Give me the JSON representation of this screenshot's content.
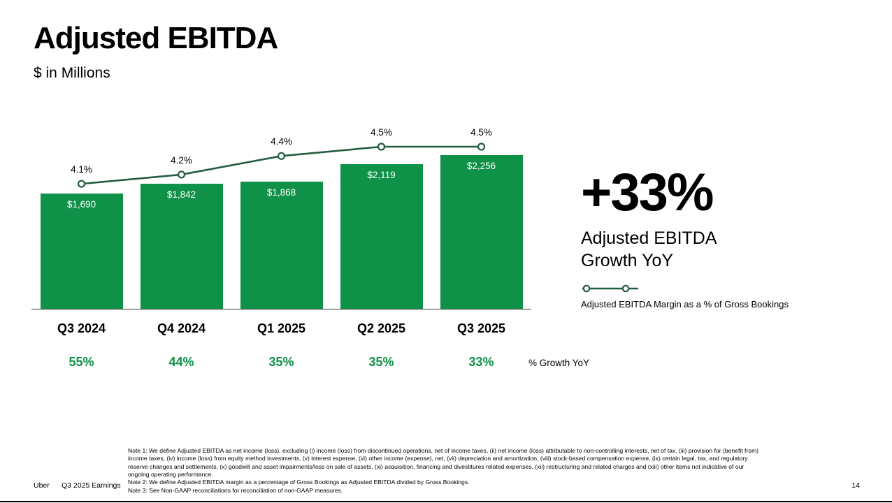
{
  "title": "Adjusted EBITDA",
  "subtitle": "$ in Millions",
  "chart_data": {
    "type": "bar",
    "title": "Adjusted EBITDA",
    "ylabel": "$ in Millions",
    "categories": [
      "Q3 2024",
      "Q4 2024",
      "Q1 2025",
      "Q2 2025",
      "Q3 2025"
    ],
    "series": [
      {
        "name": "Adjusted EBITDA ($M)",
        "type": "bar",
        "values": [
          1690,
          1842,
          1868,
          2119,
          2256
        ],
        "labels": [
          "$1,690",
          "$1,842",
          "$1,868",
          "$2,119",
          "$2,256"
        ]
      },
      {
        "name": "Adjusted EBITDA Margin as a % of Gross Bookings",
        "type": "line",
        "values": [
          4.1,
          4.2,
          4.4,
          4.5,
          4.5
        ],
        "labels": [
          "4.1%",
          "4.2%",
          "4.4%",
          "4.5%",
          "4.5%"
        ]
      },
      {
        "name": "% Growth YoY",
        "type": "row",
        "values": [
          55,
          44,
          35,
          35,
          33
        ],
        "labels": [
          "55%",
          "44%",
          "35%",
          "35%",
          "33%"
        ]
      }
    ],
    "bar_color": "#0f9147",
    "line_color": "#235c3f",
    "growth_color": "#0f9147",
    "grid": false,
    "legend_position": "right"
  },
  "growth_axis_label": "% Growth YoY",
  "highlight": {
    "value": "+33%",
    "label": "Adjusted EBITDA\nGrowth YoY"
  },
  "legend": {
    "margin_label": "Adjusted EBITDA Margin as a % of Gross Bookings"
  },
  "notes": [
    "Note 1: We define Adjusted EBITDA as net income (loss), excluding (i) income (loss) from discontinued operations, net of income taxes, (ii) net income (loss) attributable to non-controlling interests, net of tax, (iii) provision for (benefit from) income taxes, (iv) income (loss) from equity method investments, (v) interest expense, (vi) other income (expense), net, (vii) depreciation and amortization, (viii) stock-based compensation expense, (ix) certain legal, tax, and regulatory reserve changes and settlements, (x) goodwill and asset impairments/loss on sale of assets, (xi) acquisition, financing and divestitures related expenses, (xii) restructuring and related charges and (xiii) other items not indicative of our ongoing operating performance.",
    "Note 2: We define Adjusted EBITDA margin as a percentage of Gross Bookings as Adjusted EBITDA divided by Gross Bookings.",
    "Note 3: See Non-GAAP reconciliations for reconciliation of non-GAAP measures."
  ],
  "footer": {
    "brand": "Uber",
    "deck": "Q3 2025 Earnings",
    "page": "14"
  }
}
